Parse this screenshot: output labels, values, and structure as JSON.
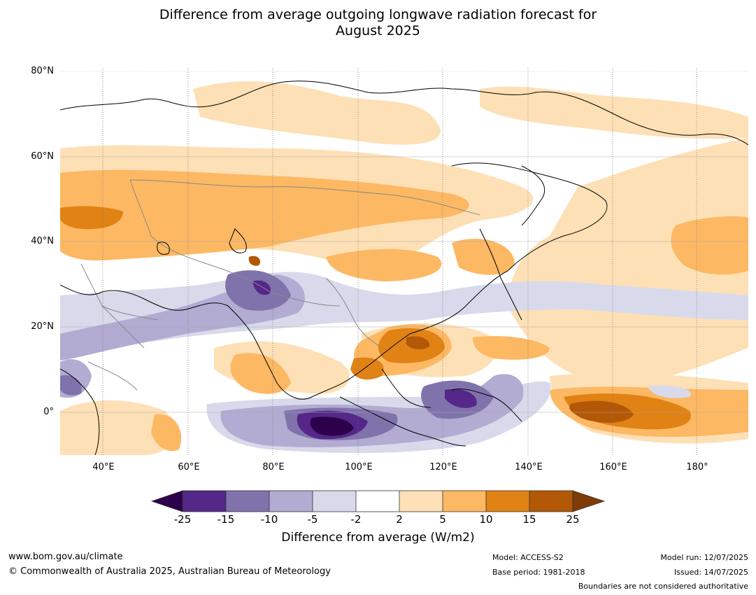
{
  "title_line1": "Difference from average outgoing longwave radiation forecast for",
  "title_line2": "August 2025",
  "lat_labels": [
    "80°N",
    "60°N",
    "40°N",
    "20°N",
    "0°"
  ],
  "lon_labels": [
    "40°E",
    "60°E",
    "80°E",
    "100°E",
    "120°E",
    "140°E",
    "160°E",
    "180°"
  ],
  "colorbar": {
    "ticks": [
      "-25",
      "-15",
      "-10",
      "-5",
      "-2",
      "2",
      "5",
      "10",
      "15",
      "25"
    ],
    "label": "Difference from average (W/m2)",
    "colors": {
      "lt_-25": "#2d004b",
      "-25_-15": "#542788",
      "-15_-10": "#8073ac",
      "-10_-5": "#b2abd2",
      "-5_-2": "#d8daeb",
      "-2_2": "#ffffff",
      "2_5": "#fee0b6",
      "5_10": "#fdb863",
      "10_15": "#e08214",
      "15_25": "#b35806",
      "gt_25": "#7f3b08"
    }
  },
  "footer": {
    "website": "www.bom.gov.au/climate",
    "copyright": "© Commonwealth of Australia 2025, Australian Bureau of Meteorology",
    "model": "Model: ACCESS-S2",
    "base_period": "Base period: 1981-2018",
    "model_run": "Model run: 12/07/2025",
    "issued": "Issued: 14/07/2025",
    "boundaries": "Boundaries are not considered authoritative"
  }
}
